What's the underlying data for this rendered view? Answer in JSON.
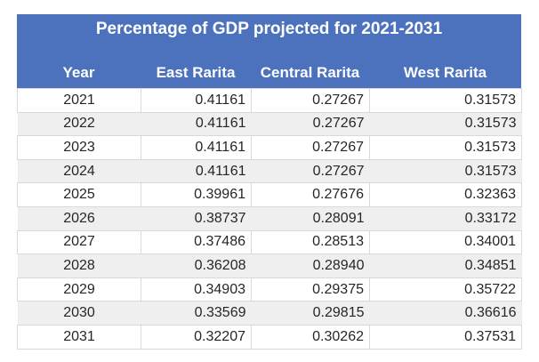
{
  "table": {
    "title": "Percentage of GDP projected for 2021-2031",
    "columns": [
      "Year",
      "East Rarita",
      "Central Rarita",
      "West Rarita"
    ],
    "rows": [
      [
        "2021",
        "0.41161",
        "0.27267",
        "0.31573"
      ],
      [
        "2022",
        "0.41161",
        "0.27267",
        "0.31573"
      ],
      [
        "2023",
        "0.41161",
        "0.27267",
        "0.31573"
      ],
      [
        "2024",
        "0.41161",
        "0.27267",
        "0.31573"
      ],
      [
        "2025",
        "0.39961",
        "0.27676",
        "0.32363"
      ],
      [
        "2026",
        "0.38737",
        "0.28091",
        "0.33172"
      ],
      [
        "2027",
        "0.37486",
        "0.28513",
        "0.34001"
      ],
      [
        "2028",
        "0.36208",
        "0.28940",
        "0.34851"
      ],
      [
        "2029",
        "0.34903",
        "0.29375",
        "0.35722"
      ],
      [
        "2030",
        "0.33569",
        "0.29815",
        "0.36616"
      ],
      [
        "2031",
        "0.32207",
        "0.30262",
        "0.37531"
      ]
    ]
  },
  "colors": {
    "header_bg": "#4C72BE",
    "header_text": "#FFFFFF",
    "row_bg": "#FFFFFF",
    "row_alt_bg": "#EFEFEF",
    "grid_line": "#D9D9D9",
    "data_text": "#262626"
  },
  "chart_data": {
    "type": "table",
    "title": "Percentage of GDP projected for 2021-2031",
    "categories": [
      "Year",
      "East Rarita",
      "Central Rarita",
      "West Rarita"
    ],
    "series": [
      {
        "name": "East Rarita",
        "x": [
          2021,
          2022,
          2023,
          2024,
          2025,
          2026,
          2027,
          2028,
          2029,
          2030,
          2031
        ],
        "values": [
          0.41161,
          0.41161,
          0.41161,
          0.41161,
          0.39961,
          0.38737,
          0.37486,
          0.36208,
          0.34903,
          0.33569,
          0.32207
        ]
      },
      {
        "name": "Central Rarita",
        "x": [
          2021,
          2022,
          2023,
          2024,
          2025,
          2026,
          2027,
          2028,
          2029,
          2030,
          2031
        ],
        "values": [
          0.27267,
          0.27267,
          0.27267,
          0.27267,
          0.27676,
          0.28091,
          0.28513,
          0.2894,
          0.29375,
          0.29815,
          0.30262
        ]
      },
      {
        "name": "West Rarita",
        "x": [
          2021,
          2022,
          2023,
          2024,
          2025,
          2026,
          2027,
          2028,
          2029,
          2030,
          2031
        ],
        "values": [
          0.31573,
          0.31573,
          0.31573,
          0.31573,
          0.32363,
          0.33172,
          0.34001,
          0.34851,
          0.35722,
          0.36616,
          0.37531
        ]
      }
    ],
    "layout_hints": {
      "banded_rows": true,
      "header_color": "#4C72BE"
    }
  }
}
